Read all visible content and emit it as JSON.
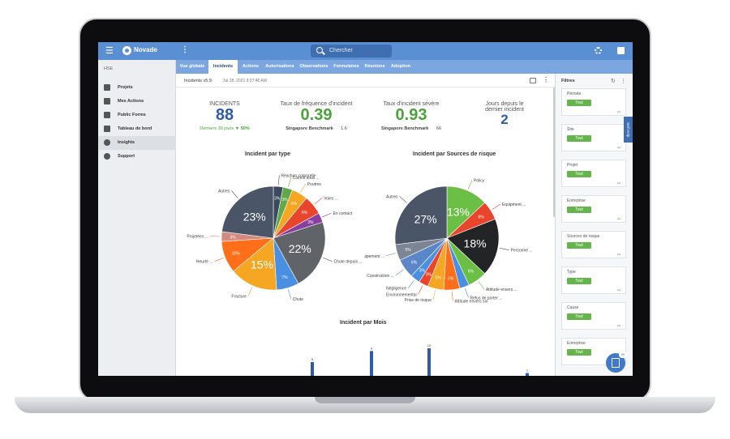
{
  "app": {
    "logo": "Novade",
    "search_placeholder": "Chercher"
  },
  "tabs": [
    {
      "label": "Vue globale",
      "active": false
    },
    {
      "label": "Incidents",
      "active": true
    },
    {
      "label": "Actions",
      "active": false
    },
    {
      "label": "Autorisations",
      "active": false
    },
    {
      "label": "Observations",
      "active": false
    },
    {
      "label": "Formulaires",
      "active": false
    },
    {
      "label": "Réunions",
      "active": false
    },
    {
      "label": "Adoption",
      "active": false
    }
  ],
  "sidebar": {
    "heading": "HSE",
    "items": [
      {
        "label": "Projets",
        "icon": "building-icon",
        "active": false
      },
      {
        "label": "Mes Actions",
        "icon": "calendar-icon",
        "active": false
      },
      {
        "label": "Public Forms",
        "icon": "forms-icon",
        "active": false
      },
      {
        "label": "Tableau de bord",
        "icon": "chart-icon",
        "active": false
      },
      {
        "label": "Insights",
        "icon": "star-icon",
        "active": true
      },
      {
        "label": "Support",
        "icon": "help-icon",
        "active": false
      }
    ]
  },
  "subbar": {
    "title": "Incidents v5.9",
    "date": "Jul 28, 2021 9:27:40 AM"
  },
  "kpis": {
    "incidents": {
      "label": "INCIDENTS",
      "value": "88",
      "sub_label": "Derniers 30 jours",
      "sub_delta": "50%"
    },
    "freq": {
      "label": "Taux de fréquence d'incident",
      "value": "0.39",
      "bench_label": "Singapore Benchmark",
      "bench_value": "1.6"
    },
    "severe": {
      "label": "Taux d'incident sévère",
      "value": "0.93",
      "bench_label": "Singapore Benchmark",
      "bench_value": "66"
    },
    "days": {
      "label_line1": "Jours depuis le",
      "label_line2": "dernier incident",
      "value": "2"
    }
  },
  "filters": {
    "title": "Filtres",
    "self_help": "Self Help",
    "chip": "Tout",
    "items": [
      "Période",
      "Site",
      "Projet",
      "Entreprise",
      "Sources de risque",
      "Type",
      "Cause",
      "Entreprise"
    ]
  },
  "fab_badge": "99",
  "chart_data": [
    {
      "type": "pie",
      "title": "Incident par type",
      "slices": [
        {
          "label": "Réaction corporelle",
          "value": 3,
          "color": "#3b4a5e",
          "show": "3%"
        },
        {
          "label": "Coincé sous ...",
          "value": 3,
          "color": "#5fa94a",
          "show": "3%"
        },
        {
          "label": "Poutres",
          "value": 5,
          "color": "#f5a623",
          "show": "5%"
        },
        {
          "label": "Voies ...",
          "value": 6,
          "color": "#e8452c",
          "show": "6%"
        },
        {
          "label": "En contact",
          "value": 3,
          "color": "#8a3ea0",
          "show": "3%"
        },
        {
          "label": "Chute depuis ...",
          "value": 22,
          "color": "#606468",
          "show": "22%"
        },
        {
          "label": "Chute",
          "value": 7,
          "color": "#4a90e2",
          "show": "7%"
        },
        {
          "label": "Fracture",
          "value": 15,
          "color": "#f5a623",
          "show": "15%"
        },
        {
          "label": "Heurté ...",
          "value": 10,
          "color": "#ff6f1a",
          "show": "10%"
        },
        {
          "label": "Projetées ...",
          "value": 3,
          "color": "#d48a7e",
          "show": "3%"
        },
        {
          "label": "Autres",
          "value": 23,
          "color": "#4a5568",
          "show": "23%"
        }
      ]
    },
    {
      "type": "pie",
      "title": "Incident par Sources de risque",
      "slices": [
        {
          "label": "Policy",
          "value": 13,
          "color": "#6cbf45",
          "show": "13%"
        },
        {
          "label": "Equipment ...",
          "value": 6,
          "color": "#e8452c",
          "show": "6%"
        },
        {
          "label": "Personne ...",
          "value": 18,
          "color": "#222426",
          "show": "18%"
        },
        {
          "label": "Attitude envers ...",
          "value": 6,
          "color": "#6cbf45",
          "show": "6%"
        },
        {
          "label": "Refus de porter ...",
          "value": 3,
          "color": "#4a90e2",
          "show": ""
        },
        {
          "label": "Attitude envers soi",
          "value": 5,
          "color": "#ff6f1a",
          "show": "5%"
        },
        {
          "label": "Prise de risque",
          "value": 5,
          "color": "#f5a623",
          "show": "5%"
        },
        {
          "label": "Environnemental",
          "value": 3,
          "color": "#e8452c",
          "show": "3%"
        },
        {
          "label": "Négligence",
          "value": 3,
          "color": "#4a90e2",
          "show": "3%"
        },
        {
          "label": "Construction ...",
          "value": 6,
          "color": "#5b86c9",
          "show": "6%"
        },
        {
          "label": "Equipement ...",
          "value": 5,
          "color": "#7b8594",
          "show": "5%"
        },
        {
          "label": "Autres",
          "value": 27,
          "color": "#4a5568",
          "show": "27%"
        }
      ]
    },
    {
      "type": "bar",
      "title": "Incident par Mois",
      "values": [
        5,
        9,
        10,
        1
      ],
      "labels": [
        "5",
        "9",
        "10",
        "1"
      ],
      "color": "#2d5da8"
    }
  ]
}
